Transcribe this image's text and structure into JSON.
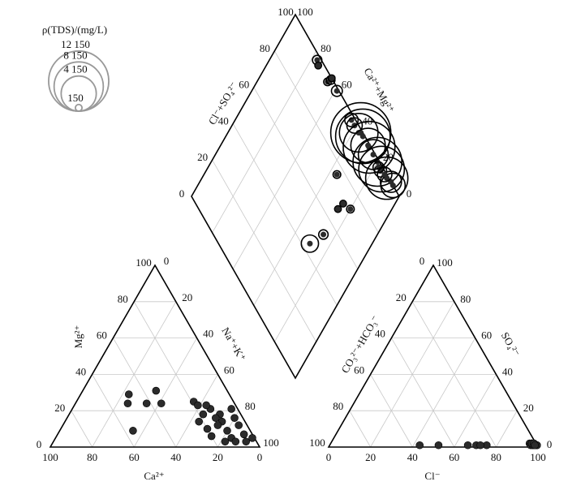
{
  "chart_data": {
    "type": "piper",
    "color": "#2b2b2b",
    "size_legend": {
      "title": "ρ(TDS)/(mg/L)",
      "values": [
        {
          "value": 12150,
          "label": "12 150"
        },
        {
          "value": 8150,
          "label": "8 150"
        },
        {
          "value": 4150,
          "label": "4 150"
        },
        {
          "value": 150,
          "label": "150"
        }
      ]
    },
    "axes": {
      "ca": {
        "label": "Ca²⁺",
        "lim": [
          0,
          100
        ],
        "ticks": [
          0,
          20,
          40,
          60,
          80,
          100
        ]
      },
      "mg": {
        "label": "Mg²⁺",
        "lim": [
          0,
          100
        ],
        "ticks": [
          0,
          20,
          40,
          60,
          80,
          100
        ]
      },
      "na_k": {
        "label": "Na⁺+K⁺",
        "lim": [
          0,
          100
        ],
        "ticks": [
          0,
          20,
          40,
          60,
          80,
          100
        ]
      },
      "cl": {
        "label": "Cl⁻",
        "lim": [
          0,
          100
        ],
        "ticks": [
          0,
          20,
          40,
          60,
          80,
          100
        ]
      },
      "so4": {
        "label": "SO₄²⁻",
        "lim": [
          0,
          100
        ],
        "ticks": [
          0,
          20,
          40,
          60,
          80,
          100
        ]
      },
      "co3_hco3": {
        "label": "CO₃²⁻+HCO₃⁻",
        "lim": [
          0,
          100
        ],
        "ticks": [
          0,
          20,
          40,
          60,
          80,
          100
        ]
      },
      "cl_so4": {
        "label": "Cl⁻+SO₄²⁻",
        "lim": [
          0,
          100
        ],
        "ticks": [
          0,
          20,
          40,
          60,
          80,
          100
        ]
      },
      "ca_mg": {
        "label": "Ca²⁺+Mg²⁺",
        "lim": [
          0,
          100
        ],
        "ticks": [
          0,
          20,
          40,
          60,
          80,
          100
        ]
      }
    },
    "samples": {
      "ca": [
        48,
        51,
        42,
        34,
        35,
        56,
        19,
        18,
        18,
        13,
        22,
        20,
        20,
        10,
        11,
        11,
        11,
        4,
        4,
        4,
        5,
        14,
        15,
        1,
        14,
        13,
        3,
        10
      ],
      "mg": [
        29,
        24,
        24,
        31,
        24,
        9,
        25,
        23,
        18,
        21,
        14,
        10,
        6,
        18,
        14,
        9,
        5,
        16,
        12,
        7,
        3,
        12,
        3,
        5,
        23,
        16,
        21,
        3
      ],
      "cl": [
        97,
        95,
        96,
        98,
        97,
        99,
        96,
        97,
        98,
        97,
        75,
        43,
        52,
        98,
        70,
        72,
        96,
        97,
        98,
        97,
        99,
        66,
        97,
        99,
        96,
        98,
        97,
        98
      ],
      "so4": [
        1,
        2,
        1,
        1,
        2,
        1,
        2,
        1,
        1,
        2,
        1,
        1,
        1,
        1,
        1,
        1,
        2,
        2,
        1,
        2,
        1,
        1,
        1,
        1,
        2,
        1,
        2,
        1
      ],
      "tds": [
        300,
        150,
        200,
        250,
        400,
        150,
        600,
        800,
        12150,
        10000,
        200,
        1000,
        300,
        9000,
        150,
        200,
        500,
        8000,
        7000,
        6000,
        1500,
        150,
        400,
        2000,
        5000,
        4000,
        3000,
        700
      ]
    }
  }
}
